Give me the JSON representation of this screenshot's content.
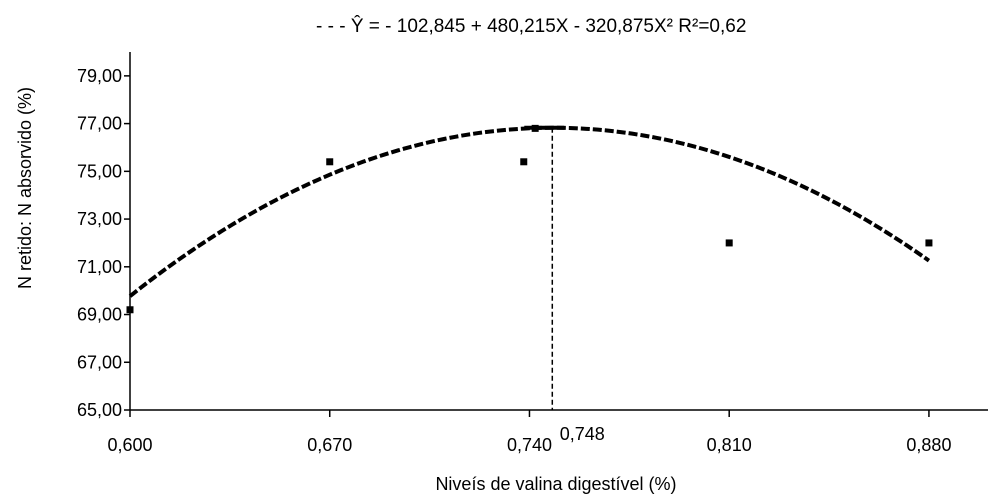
{
  "chart_data": {
    "type": "scatter",
    "equation_label": "- - - Ŷ = - 102,845 + 480,215X - 320,875X² R²=0,62",
    "xlabel": "Niveís de valina digestível (%)",
    "ylabel": "N retido: N absorvido (%)",
    "xlim": [
      0.6,
      0.9
    ],
    "ylim": [
      65,
      80
    ],
    "x_ticks": [
      {
        "value": 0.6,
        "label": "0,600"
      },
      {
        "value": 0.67,
        "label": "0,670"
      },
      {
        "value": 0.74,
        "label": "0,740"
      },
      {
        "value": 0.81,
        "label": "0,810"
      },
      {
        "value": 0.88,
        "label": "0,880"
      }
    ],
    "y_ticks": [
      {
        "value": 65,
        "label": "65,00"
      },
      {
        "value": 67,
        "label": "67,00"
      },
      {
        "value": 69,
        "label": "69,00"
      },
      {
        "value": 71,
        "label": "71,00"
      },
      {
        "value": 73,
        "label": "73,00"
      },
      {
        "value": 75,
        "label": "75,00"
      },
      {
        "value": 77,
        "label": "77,00"
      },
      {
        "value": 79,
        "label": "79,00"
      }
    ],
    "points": [
      {
        "x": 0.6,
        "y": 69.2
      },
      {
        "x": 0.67,
        "y": 75.4
      },
      {
        "x": 0.738,
        "y": 75.4
      },
      {
        "x": 0.742,
        "y": 76.8
      },
      {
        "x": 0.81,
        "y": 72.0
      },
      {
        "x": 0.88,
        "y": 72.0
      }
    ],
    "fit": {
      "b0": -102.845,
      "b1": 480.215,
      "b2": -320.875,
      "x_range": [
        0.6,
        0.88
      ],
      "style": "dashed"
    },
    "optimum": {
      "x": 0.748,
      "label": "0,748"
    },
    "grid": false
  }
}
